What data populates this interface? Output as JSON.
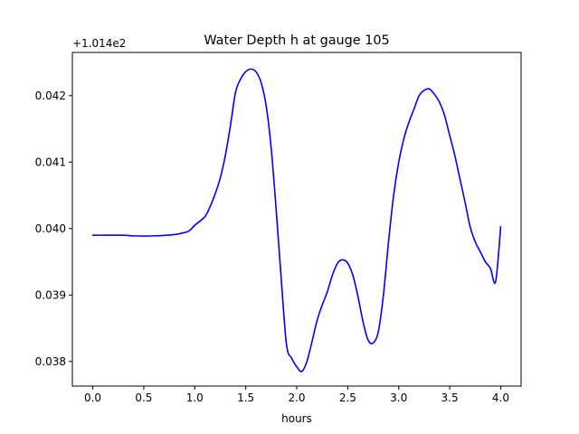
{
  "chart_data": {
    "type": "line",
    "title": "Water Depth h at gauge 105",
    "xlabel": "hours",
    "ylabel": "",
    "y_offset_label": "+1.014e2",
    "xlim": [
      -0.2,
      4.2
    ],
    "ylim": [
      0.03763,
      0.04265
    ],
    "x_ticks": [
      0.0,
      0.5,
      1.0,
      1.5,
      2.0,
      2.5,
      3.0,
      3.5,
      4.0
    ],
    "x_tick_labels": [
      "0.0",
      "0.5",
      "1.0",
      "1.5",
      "2.0",
      "2.5",
      "3.0",
      "3.5",
      "4.0"
    ],
    "y_ticks": [
      0.038,
      0.039,
      0.04,
      0.041,
      0.042
    ],
    "y_tick_labels": [
      "0.038",
      "0.039",
      "0.040",
      "0.041",
      "0.042"
    ],
    "grid": false,
    "line_color": "#0000ff",
    "series": [
      {
        "x": [
          0.0,
          0.3,
          0.4,
          0.6,
          0.8,
          0.9,
          0.95,
          1.0,
          1.1,
          1.15,
          1.2,
          1.25,
          1.3,
          1.35,
          1.4,
          1.45,
          1.5,
          1.55,
          1.6,
          1.65,
          1.7,
          1.75,
          1.8,
          1.85,
          1.9,
          1.95,
          2.0,
          2.05,
          2.1,
          2.15,
          2.2,
          2.25,
          2.3,
          2.35,
          2.4,
          2.45,
          2.5,
          2.55,
          2.6,
          2.65,
          2.7,
          2.75,
          2.8,
          2.85,
          2.9,
          2.95,
          3.0,
          3.05,
          3.1,
          3.15,
          3.2,
          3.25,
          3.3,
          3.35,
          3.4,
          3.45,
          3.5,
          3.55,
          3.6,
          3.65,
          3.7,
          3.75,
          3.8,
          3.85,
          3.9,
          3.95,
          4.0
        ],
        "y": [
          0.0399,
          0.0399,
          0.03989,
          0.03989,
          0.03991,
          0.03994,
          0.03997,
          0.04005,
          0.04018,
          0.04033,
          0.04052,
          0.04076,
          0.0411,
          0.04155,
          0.04205,
          0.04225,
          0.04236,
          0.0424,
          0.04236,
          0.0422,
          0.04185,
          0.0412,
          0.04025,
          0.0392,
          0.03825,
          0.03805,
          0.03792,
          0.03785,
          0.038,
          0.0383,
          0.03862,
          0.03885,
          0.03905,
          0.0393,
          0.03948,
          0.03953,
          0.03948,
          0.0393,
          0.03898,
          0.0386,
          0.03832,
          0.03828,
          0.03845,
          0.039,
          0.0398,
          0.0405,
          0.041,
          0.04135,
          0.0416,
          0.0418,
          0.042,
          0.04208,
          0.0421,
          0.04202,
          0.0419,
          0.0417,
          0.0414,
          0.0411,
          0.04075,
          0.0404,
          0.04003,
          0.0398,
          0.03965,
          0.0395,
          0.0394,
          0.0392,
          0.04003
        ]
      }
    ]
  }
}
